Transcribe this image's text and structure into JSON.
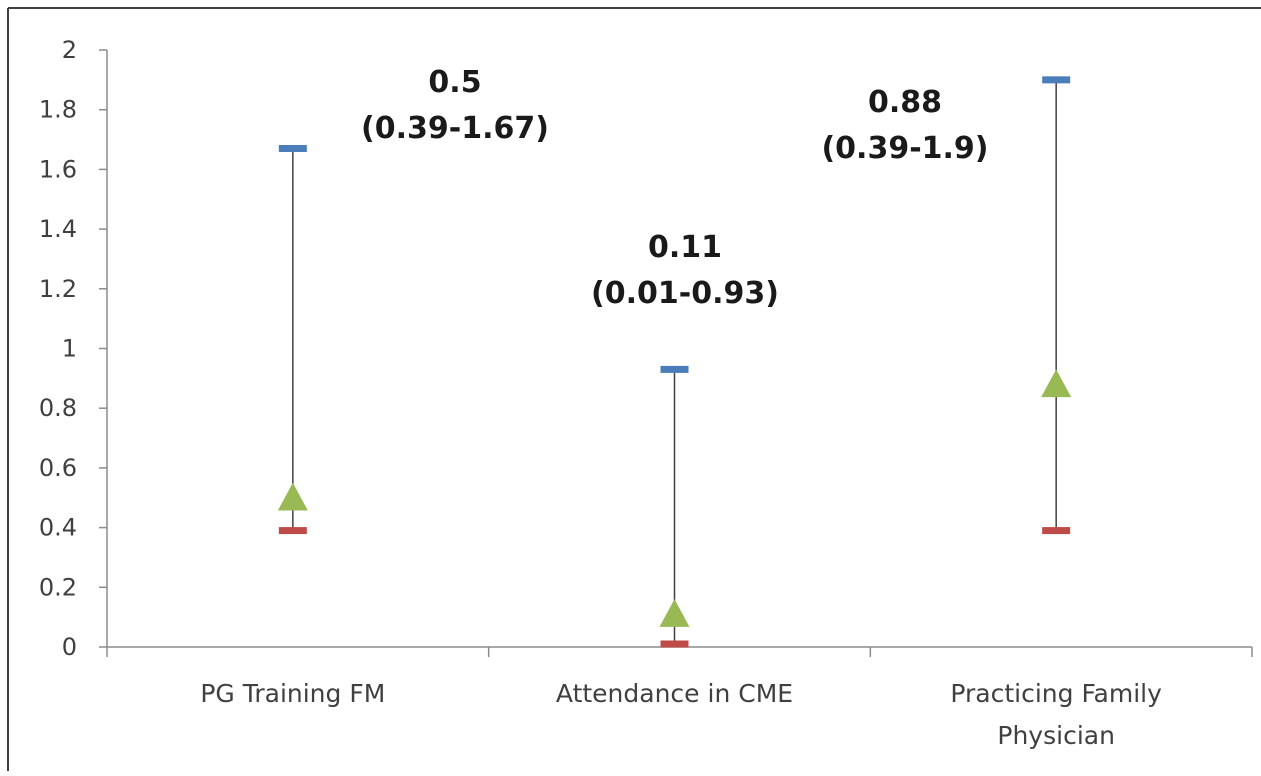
{
  "chart_data": {
    "type": "scatter",
    "title": "",
    "xlabel": "",
    "ylabel": "",
    "ylim": [
      0,
      2
    ],
    "y_ticks": [
      "0",
      "0.2",
      "0.4",
      "0.6",
      "0.8",
      "1",
      "1.2",
      "1.4",
      "1.6",
      "1.8",
      "2"
    ],
    "categories": [
      [
        "PG Training FM"
      ],
      [
        "Attendance in CME"
      ],
      [
        "Practicing Family",
        "Physician"
      ]
    ],
    "series": [
      {
        "key": "high",
        "values": [
          1.67,
          0.93,
          1.9
        ]
      },
      {
        "key": "low",
        "values": [
          0.39,
          0.01,
          0.39
        ]
      },
      {
        "key": "estimate",
        "values": [
          0.5,
          0.11,
          0.88
        ]
      }
    ],
    "annotations": [
      [
        "0.5",
        "(0.39-1.67)"
      ],
      [
        "0.11",
        "(0.01-0.93)"
      ],
      [
        "0.88",
        "(0.39-1.9)"
      ]
    ],
    "grid": false,
    "legend": "none",
    "colors": {
      "high": "#4a7ebb",
      "low": "#be4b48",
      "estimate": "#98b954",
      "whisker": "#404040",
      "axis": "#8c8c8c"
    }
  }
}
